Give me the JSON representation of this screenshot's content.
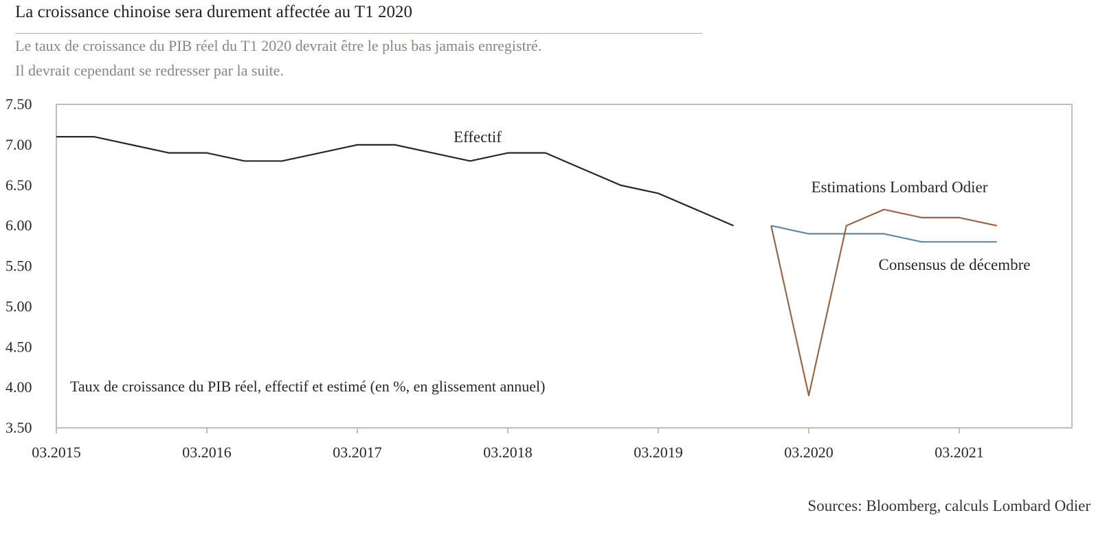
{
  "header": {
    "title": "La croissance chinoise sera durement affectée au T1 2020",
    "subtitle_line1": "Le taux de croissance du PIB réel du T1 2020 devrait être le plus bas jamais enregistré.",
    "subtitle_line2": "Il devrait cependant se redresser par la suite."
  },
  "footer": {
    "source": "Sources: Bloomberg, calculs Lombard Odier"
  },
  "colors": {
    "effectif": "#2e2624",
    "lombard": "#9a6648",
    "consensus": "#5f8aa3",
    "frame": "#c9bcb6",
    "text": "#2b2523"
  },
  "chart_data": {
    "type": "line",
    "title": "",
    "xlabel": "",
    "ylabel": "",
    "ylim": [
      3.5,
      7.5
    ],
    "yticks": [
      "7.50",
      "7.00",
      "6.50",
      "6.00",
      "5.50",
      "5.00",
      "4.50",
      "4.00",
      "3.50"
    ],
    "x_tick_labels": [
      "03.2015",
      "03.2016",
      "03.2017",
      "03.2018",
      "03.2019",
      "03.2020",
      "03.2021"
    ],
    "grid": false,
    "note": "Taux de croissance du PIB réel, effectif et estimé (en %, en glissement annuel)",
    "series": [
      {
        "name": "Effectif",
        "color": "#2e2624",
        "x": [
          "03.2015",
          "06.2015",
          "09.2015",
          "12.2015",
          "03.2016",
          "06.2016",
          "09.2016",
          "12.2016",
          "03.2017",
          "06.2017",
          "09.2017",
          "12.2017",
          "03.2018",
          "06.2018",
          "09.2018",
          "12.2018",
          "03.2019",
          "06.2019",
          "09.2019"
        ],
        "values": [
          7.1,
          7.1,
          7.0,
          6.9,
          6.9,
          6.8,
          6.8,
          6.9,
          7.0,
          7.0,
          6.9,
          6.8,
          6.9,
          6.9,
          6.7,
          6.5,
          6.4,
          6.2,
          6.0
        ]
      },
      {
        "name": "Estimations Lombard Odier",
        "color": "#9a6648",
        "x": [
          "12.2019",
          "03.2020",
          "06.2020",
          "09.2020",
          "12.2020",
          "03.2021",
          "06.2021"
        ],
        "values": [
          6.0,
          3.9,
          6.0,
          6.2,
          6.1,
          6.1,
          6.0
        ]
      },
      {
        "name": "Consensus de décembre",
        "color": "#5f8aa3",
        "x": [
          "12.2019",
          "03.2020",
          "06.2020",
          "09.2020",
          "12.2020",
          "03.2021",
          "06.2021"
        ],
        "values": [
          6.0,
          5.9,
          5.9,
          5.9,
          5.8,
          5.8,
          5.8
        ]
      }
    ]
  }
}
